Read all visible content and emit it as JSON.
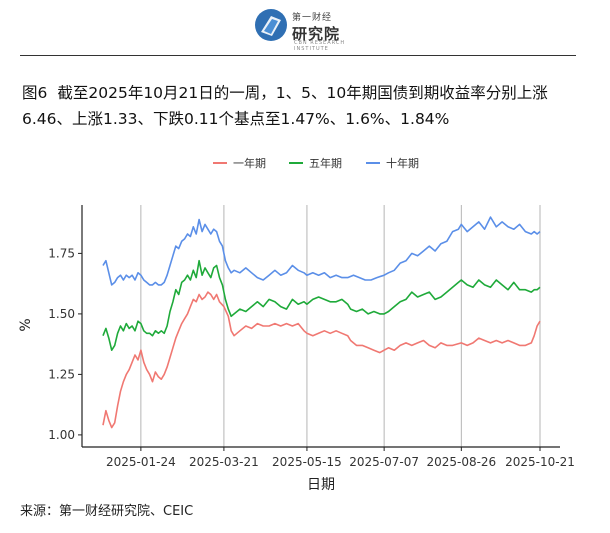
{
  "header": {
    "logo_top_text": "第一财经",
    "logo_main_text": "研究院",
    "logo_tag_text": "CBN RESEARCH INSTITUTE"
  },
  "figure": {
    "number": "图6",
    "title": "截至2025年10月21日的一周，1、5、10年期国债到期收益率分别上涨6.46、上涨1.33、下跌0.11个基点至1.47%、1.6%、1.84%"
  },
  "source": "来源：第一财经研究院、CEIC",
  "colors": {
    "one_year": "#F07872",
    "five_year": "#1FAA3A",
    "ten_year": "#5B8FE8",
    "grid": "#B5B5B5",
    "axis": "#222222"
  },
  "chart_data": {
    "type": "line",
    "title": "",
    "xlabel": "日期",
    "ylabel": "%",
    "ylim": [
      0.95,
      1.95
    ],
    "yticks": [
      1.0,
      1.25,
      1.5,
      1.75
    ],
    "ytick_labels": [
      "1.00",
      "1.25",
      "1.50",
      "1.75"
    ],
    "xticks": [
      "2025-01-24",
      "2025-03-21",
      "2025-05-15",
      "2025-07-07",
      "2025-08-26",
      "2025-10-21"
    ],
    "x_index_range": [
      0,
      300
    ],
    "xtick_index": [
      26,
      83,
      140,
      193,
      246,
      300
    ],
    "legend": [
      "一年期",
      "五年期",
      "十年期"
    ],
    "legend_position": "top",
    "series": [
      {
        "name": "一年期",
        "color_key": "one_year",
        "points": [
          [
            0,
            1.04
          ],
          [
            2,
            1.1
          ],
          [
            4,
            1.06
          ],
          [
            6,
            1.03
          ],
          [
            8,
            1.05
          ],
          [
            10,
            1.12
          ],
          [
            12,
            1.18
          ],
          [
            14,
            1.22
          ],
          [
            16,
            1.25
          ],
          [
            18,
            1.27
          ],
          [
            20,
            1.3
          ],
          [
            22,
            1.33
          ],
          [
            24,
            1.31
          ],
          [
            26,
            1.35
          ],
          [
            28,
            1.3
          ],
          [
            30,
            1.27
          ],
          [
            32,
            1.25
          ],
          [
            34,
            1.22
          ],
          [
            36,
            1.26
          ],
          [
            38,
            1.24
          ],
          [
            40,
            1.23
          ],
          [
            42,
            1.25
          ],
          [
            44,
            1.28
          ],
          [
            46,
            1.32
          ],
          [
            48,
            1.36
          ],
          [
            50,
            1.4
          ],
          [
            52,
            1.43
          ],
          [
            54,
            1.46
          ],
          [
            56,
            1.48
          ],
          [
            58,
            1.5
          ],
          [
            60,
            1.53
          ],
          [
            62,
            1.56
          ],
          [
            64,
            1.55
          ],
          [
            66,
            1.58
          ],
          [
            68,
            1.56
          ],
          [
            70,
            1.57
          ],
          [
            72,
            1.59
          ],
          [
            74,
            1.58
          ],
          [
            76,
            1.56
          ],
          [
            78,
            1.58
          ],
          [
            80,
            1.55
          ],
          [
            83,
            1.53
          ],
          [
            86,
            1.49
          ],
          [
            88,
            1.43
          ],
          [
            90,
            1.41
          ],
          [
            94,
            1.43
          ],
          [
            98,
            1.45
          ],
          [
            102,
            1.44
          ],
          [
            106,
            1.46
          ],
          [
            110,
            1.45
          ],
          [
            114,
            1.45
          ],
          [
            118,
            1.46
          ],
          [
            122,
            1.45
          ],
          [
            126,
            1.46
          ],
          [
            130,
            1.45
          ],
          [
            134,
            1.46
          ],
          [
            138,
            1.43
          ],
          [
            140,
            1.42
          ],
          [
            144,
            1.41
          ],
          [
            148,
            1.42
          ],
          [
            152,
            1.43
          ],
          [
            156,
            1.42
          ],
          [
            160,
            1.43
          ],
          [
            164,
            1.42
          ],
          [
            168,
            1.41
          ],
          [
            170,
            1.39
          ],
          [
            174,
            1.37
          ],
          [
            178,
            1.37
          ],
          [
            182,
            1.36
          ],
          [
            186,
            1.35
          ],
          [
            190,
            1.34
          ],
          [
            193,
            1.35
          ],
          [
            196,
            1.36
          ],
          [
            200,
            1.35
          ],
          [
            204,
            1.37
          ],
          [
            208,
            1.38
          ],
          [
            212,
            1.37
          ],
          [
            216,
            1.38
          ],
          [
            220,
            1.39
          ],
          [
            224,
            1.37
          ],
          [
            228,
            1.36
          ],
          [
            232,
            1.38
          ],
          [
            236,
            1.37
          ],
          [
            240,
            1.37
          ],
          [
            246,
            1.38
          ],
          [
            250,
            1.37
          ],
          [
            254,
            1.38
          ],
          [
            258,
            1.4
          ],
          [
            262,
            1.39
          ],
          [
            266,
            1.38
          ],
          [
            270,
            1.39
          ],
          [
            274,
            1.38
          ],
          [
            278,
            1.39
          ],
          [
            282,
            1.38
          ],
          [
            286,
            1.37
          ],
          [
            290,
            1.37
          ],
          [
            294,
            1.38
          ],
          [
            296,
            1.41
          ],
          [
            298,
            1.45
          ],
          [
            300,
            1.47
          ]
        ]
      },
      {
        "name": "五年期",
        "color_key": "five_year",
        "points": [
          [
            0,
            1.41
          ],
          [
            2,
            1.44
          ],
          [
            4,
            1.4
          ],
          [
            6,
            1.35
          ],
          [
            8,
            1.37
          ],
          [
            10,
            1.42
          ],
          [
            12,
            1.45
          ],
          [
            14,
            1.43
          ],
          [
            16,
            1.46
          ],
          [
            18,
            1.44
          ],
          [
            20,
            1.45
          ],
          [
            22,
            1.43
          ],
          [
            24,
            1.47
          ],
          [
            26,
            1.46
          ],
          [
            28,
            1.43
          ],
          [
            30,
            1.42
          ],
          [
            32,
            1.42
          ],
          [
            34,
            1.41
          ],
          [
            36,
            1.43
          ],
          [
            38,
            1.42
          ],
          [
            40,
            1.43
          ],
          [
            42,
            1.42
          ],
          [
            44,
            1.45
          ],
          [
            46,
            1.51
          ],
          [
            48,
            1.55
          ],
          [
            50,
            1.6
          ],
          [
            52,
            1.58
          ],
          [
            54,
            1.63
          ],
          [
            56,
            1.64
          ],
          [
            58,
            1.66
          ],
          [
            60,
            1.64
          ],
          [
            62,
            1.68
          ],
          [
            64,
            1.65
          ],
          [
            66,
            1.72
          ],
          [
            68,
            1.66
          ],
          [
            70,
            1.69
          ],
          [
            72,
            1.67
          ],
          [
            74,
            1.65
          ],
          [
            76,
            1.69
          ],
          [
            78,
            1.7
          ],
          [
            80,
            1.65
          ],
          [
            82,
            1.62
          ],
          [
            84,
            1.56
          ],
          [
            86,
            1.52
          ],
          [
            88,
            1.49
          ],
          [
            90,
            1.5
          ],
          [
            94,
            1.52
          ],
          [
            98,
            1.51
          ],
          [
            102,
            1.53
          ],
          [
            106,
            1.55
          ],
          [
            110,
            1.53
          ],
          [
            114,
            1.56
          ],
          [
            118,
            1.55
          ],
          [
            122,
            1.53
          ],
          [
            126,
            1.52
          ],
          [
            130,
            1.56
          ],
          [
            134,
            1.54
          ],
          [
            138,
            1.55
          ],
          [
            140,
            1.54
          ],
          [
            144,
            1.56
          ],
          [
            148,
            1.57
          ],
          [
            152,
            1.56
          ],
          [
            156,
            1.55
          ],
          [
            160,
            1.55
          ],
          [
            164,
            1.56
          ],
          [
            168,
            1.54
          ],
          [
            170,
            1.52
          ],
          [
            174,
            1.51
          ],
          [
            178,
            1.52
          ],
          [
            182,
            1.5
          ],
          [
            186,
            1.51
          ],
          [
            190,
            1.5
          ],
          [
            193,
            1.5
          ],
          [
            196,
            1.51
          ],
          [
            200,
            1.53
          ],
          [
            204,
            1.55
          ],
          [
            208,
            1.56
          ],
          [
            212,
            1.59
          ],
          [
            216,
            1.57
          ],
          [
            220,
            1.58
          ],
          [
            224,
            1.59
          ],
          [
            228,
            1.56
          ],
          [
            232,
            1.57
          ],
          [
            236,
            1.59
          ],
          [
            240,
            1.61
          ],
          [
            244,
            1.63
          ],
          [
            246,
            1.64
          ],
          [
            250,
            1.62
          ],
          [
            254,
            1.61
          ],
          [
            258,
            1.64
          ],
          [
            262,
            1.62
          ],
          [
            266,
            1.61
          ],
          [
            270,
            1.64
          ],
          [
            274,
            1.62
          ],
          [
            278,
            1.6
          ],
          [
            282,
            1.63
          ],
          [
            286,
            1.6
          ],
          [
            290,
            1.6
          ],
          [
            294,
            1.59
          ],
          [
            296,
            1.6
          ],
          [
            298,
            1.6
          ],
          [
            300,
            1.61
          ]
        ]
      },
      {
        "name": "十年期",
        "color_key": "ten_year",
        "points": [
          [
            0,
            1.7
          ],
          [
            2,
            1.72
          ],
          [
            4,
            1.67
          ],
          [
            6,
            1.62
          ],
          [
            8,
            1.63
          ],
          [
            10,
            1.65
          ],
          [
            12,
            1.66
          ],
          [
            14,
            1.64
          ],
          [
            16,
            1.66
          ],
          [
            18,
            1.65
          ],
          [
            20,
            1.66
          ],
          [
            22,
            1.64
          ],
          [
            24,
            1.67
          ],
          [
            26,
            1.66
          ],
          [
            28,
            1.64
          ],
          [
            30,
            1.63
          ],
          [
            32,
            1.62
          ],
          [
            34,
            1.62
          ],
          [
            36,
            1.63
          ],
          [
            38,
            1.62
          ],
          [
            40,
            1.62
          ],
          [
            42,
            1.63
          ],
          [
            44,
            1.66
          ],
          [
            46,
            1.7
          ],
          [
            48,
            1.74
          ],
          [
            50,
            1.78
          ],
          [
            52,
            1.77
          ],
          [
            54,
            1.8
          ],
          [
            56,
            1.81
          ],
          [
            58,
            1.83
          ],
          [
            60,
            1.82
          ],
          [
            62,
            1.86
          ],
          [
            64,
            1.83
          ],
          [
            66,
            1.89
          ],
          [
            68,
            1.84
          ],
          [
            70,
            1.87
          ],
          [
            72,
            1.85
          ],
          [
            74,
            1.83
          ],
          [
            76,
            1.85
          ],
          [
            78,
            1.84
          ],
          [
            80,
            1.8
          ],
          [
            82,
            1.78
          ],
          [
            84,
            1.72
          ],
          [
            86,
            1.69
          ],
          [
            88,
            1.67
          ],
          [
            90,
            1.68
          ],
          [
            94,
            1.67
          ],
          [
            98,
            1.69
          ],
          [
            102,
            1.67
          ],
          [
            106,
            1.65
          ],
          [
            110,
            1.64
          ],
          [
            114,
            1.66
          ],
          [
            118,
            1.68
          ],
          [
            122,
            1.66
          ],
          [
            126,
            1.67
          ],
          [
            130,
            1.7
          ],
          [
            134,
            1.68
          ],
          [
            138,
            1.67
          ],
          [
            140,
            1.66
          ],
          [
            144,
            1.67
          ],
          [
            148,
            1.66
          ],
          [
            152,
            1.67
          ],
          [
            156,
            1.65
          ],
          [
            160,
            1.66
          ],
          [
            164,
            1.65
          ],
          [
            168,
            1.65
          ],
          [
            172,
            1.66
          ],
          [
            176,
            1.65
          ],
          [
            180,
            1.64
          ],
          [
            184,
            1.64
          ],
          [
            188,
            1.65
          ],
          [
            193,
            1.66
          ],
          [
            196,
            1.67
          ],
          [
            200,
            1.68
          ],
          [
            204,
            1.71
          ],
          [
            208,
            1.72
          ],
          [
            212,
            1.75
          ],
          [
            216,
            1.74
          ],
          [
            220,
            1.76
          ],
          [
            224,
            1.78
          ],
          [
            228,
            1.76
          ],
          [
            232,
            1.79
          ],
          [
            236,
            1.8
          ],
          [
            240,
            1.84
          ],
          [
            244,
            1.85
          ],
          [
            246,
            1.87
          ],
          [
            250,
            1.84
          ],
          [
            254,
            1.86
          ],
          [
            258,
            1.88
          ],
          [
            262,
            1.85
          ],
          [
            266,
            1.9
          ],
          [
            270,
            1.86
          ],
          [
            274,
            1.88
          ],
          [
            278,
            1.86
          ],
          [
            282,
            1.85
          ],
          [
            286,
            1.87
          ],
          [
            290,
            1.84
          ],
          [
            294,
            1.83
          ],
          [
            296,
            1.84
          ],
          [
            298,
            1.83
          ],
          [
            300,
            1.84
          ]
        ]
      }
    ]
  }
}
